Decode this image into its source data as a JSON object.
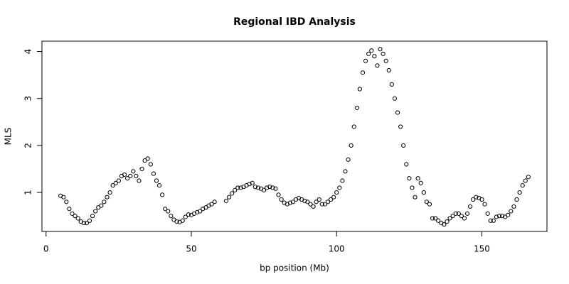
{
  "chart_data": {
    "type": "scatter",
    "title": "Regional IBD Analysis",
    "xlabel": "bp position (Mb)",
    "ylabel": "MLS",
    "marker": "open-circle",
    "color": "#000000",
    "xlim": [
      -1.4,
      172.4
    ],
    "ylim": [
      0.17,
      4.22
    ],
    "xticks": [
      0,
      50,
      100,
      150
    ],
    "yticks": [
      1,
      2,
      3,
      4
    ],
    "x": [
      5,
      6,
      7,
      8,
      9,
      10,
      11,
      12,
      13,
      14,
      15,
      16,
      17,
      18,
      19,
      20,
      21,
      22,
      23,
      24,
      25,
      26,
      27,
      28,
      29,
      30,
      31,
      32,
      33,
      34,
      35,
      36,
      37,
      38,
      39,
      40,
      41,
      42,
      43,
      44,
      45,
      46,
      47,
      48,
      49,
      50,
      51,
      52,
      53,
      54,
      55,
      56,
      57,
      58,
      62,
      63,
      64,
      65,
      66,
      67,
      68,
      69,
      70,
      71,
      72,
      73,
      74,
      75,
      76,
      77,
      78,
      79,
      80,
      81,
      82,
      83,
      84,
      85,
      86,
      87,
      88,
      89,
      90,
      91,
      92,
      93,
      94,
      95,
      96,
      97,
      98,
      99,
      100,
      101,
      102,
      103,
      104,
      105,
      106,
      107,
      108,
      109,
      110,
      111,
      112,
      113,
      114,
      115,
      116,
      117,
      118,
      119,
      120,
      121,
      122,
      123,
      124,
      125,
      126,
      127,
      128,
      129,
      130,
      131,
      132,
      133,
      134,
      135,
      136,
      137,
      138,
      139,
      140,
      141,
      142,
      143,
      144,
      145,
      146,
      147,
      148,
      149,
      150,
      151,
      152,
      153,
      154,
      155,
      156,
      157,
      158,
      159,
      160,
      161,
      162,
      163,
      164,
      165,
      166
    ],
    "values": [
      0.93,
      0.9,
      0.8,
      0.65,
      0.55,
      0.5,
      0.45,
      0.38,
      0.35,
      0.35,
      0.4,
      0.5,
      0.6,
      0.68,
      0.72,
      0.8,
      0.9,
      1.0,
      1.15,
      1.2,
      1.25,
      1.35,
      1.38,
      1.3,
      1.35,
      1.45,
      1.35,
      1.25,
      1.5,
      1.68,
      1.72,
      1.6,
      1.4,
      1.25,
      1.15,
      0.95,
      0.65,
      0.6,
      0.5,
      0.42,
      0.38,
      0.37,
      0.4,
      0.48,
      0.53,
      0.52,
      0.55,
      0.58,
      0.6,
      0.65,
      0.68,
      0.72,
      0.75,
      0.8,
      0.82,
      0.9,
      0.98,
      1.05,
      1.1,
      1.1,
      1.12,
      1.15,
      1.18,
      1.2,
      1.12,
      1.1,
      1.08,
      1.05,
      1.1,
      1.12,
      1.1,
      1.08,
      0.95,
      0.85,
      0.78,
      0.75,
      0.78,
      0.8,
      0.85,
      0.88,
      0.85,
      0.82,
      0.8,
      0.75,
      0.7,
      0.8,
      0.85,
      0.75,
      0.75,
      0.8,
      0.85,
      0.9,
      1.0,
      1.1,
      1.25,
      1.45,
      1.7,
      2.0,
      2.4,
      2.8,
      3.2,
      3.55,
      3.8,
      3.95,
      4.02,
      3.9,
      3.7,
      4.05,
      3.95,
      3.8,
      3.6,
      3.3,
      3.0,
      2.7,
      2.4,
      2.0,
      1.6,
      1.3,
      1.1,
      0.9,
      1.3,
      1.2,
      1.0,
      0.8,
      0.75,
      0.45,
      0.45,
      0.4,
      0.35,
      0.32,
      0.38,
      0.45,
      0.5,
      0.55,
      0.55,
      0.5,
      0.45,
      0.55,
      0.7,
      0.85,
      0.9,
      0.88,
      0.85,
      0.75,
      0.55,
      0.4,
      0.4,
      0.48,
      0.5,
      0.5,
      0.48,
      0.52,
      0.6,
      0.7,
      0.85,
      1.0,
      1.15,
      1.25,
      1.33
    ]
  }
}
